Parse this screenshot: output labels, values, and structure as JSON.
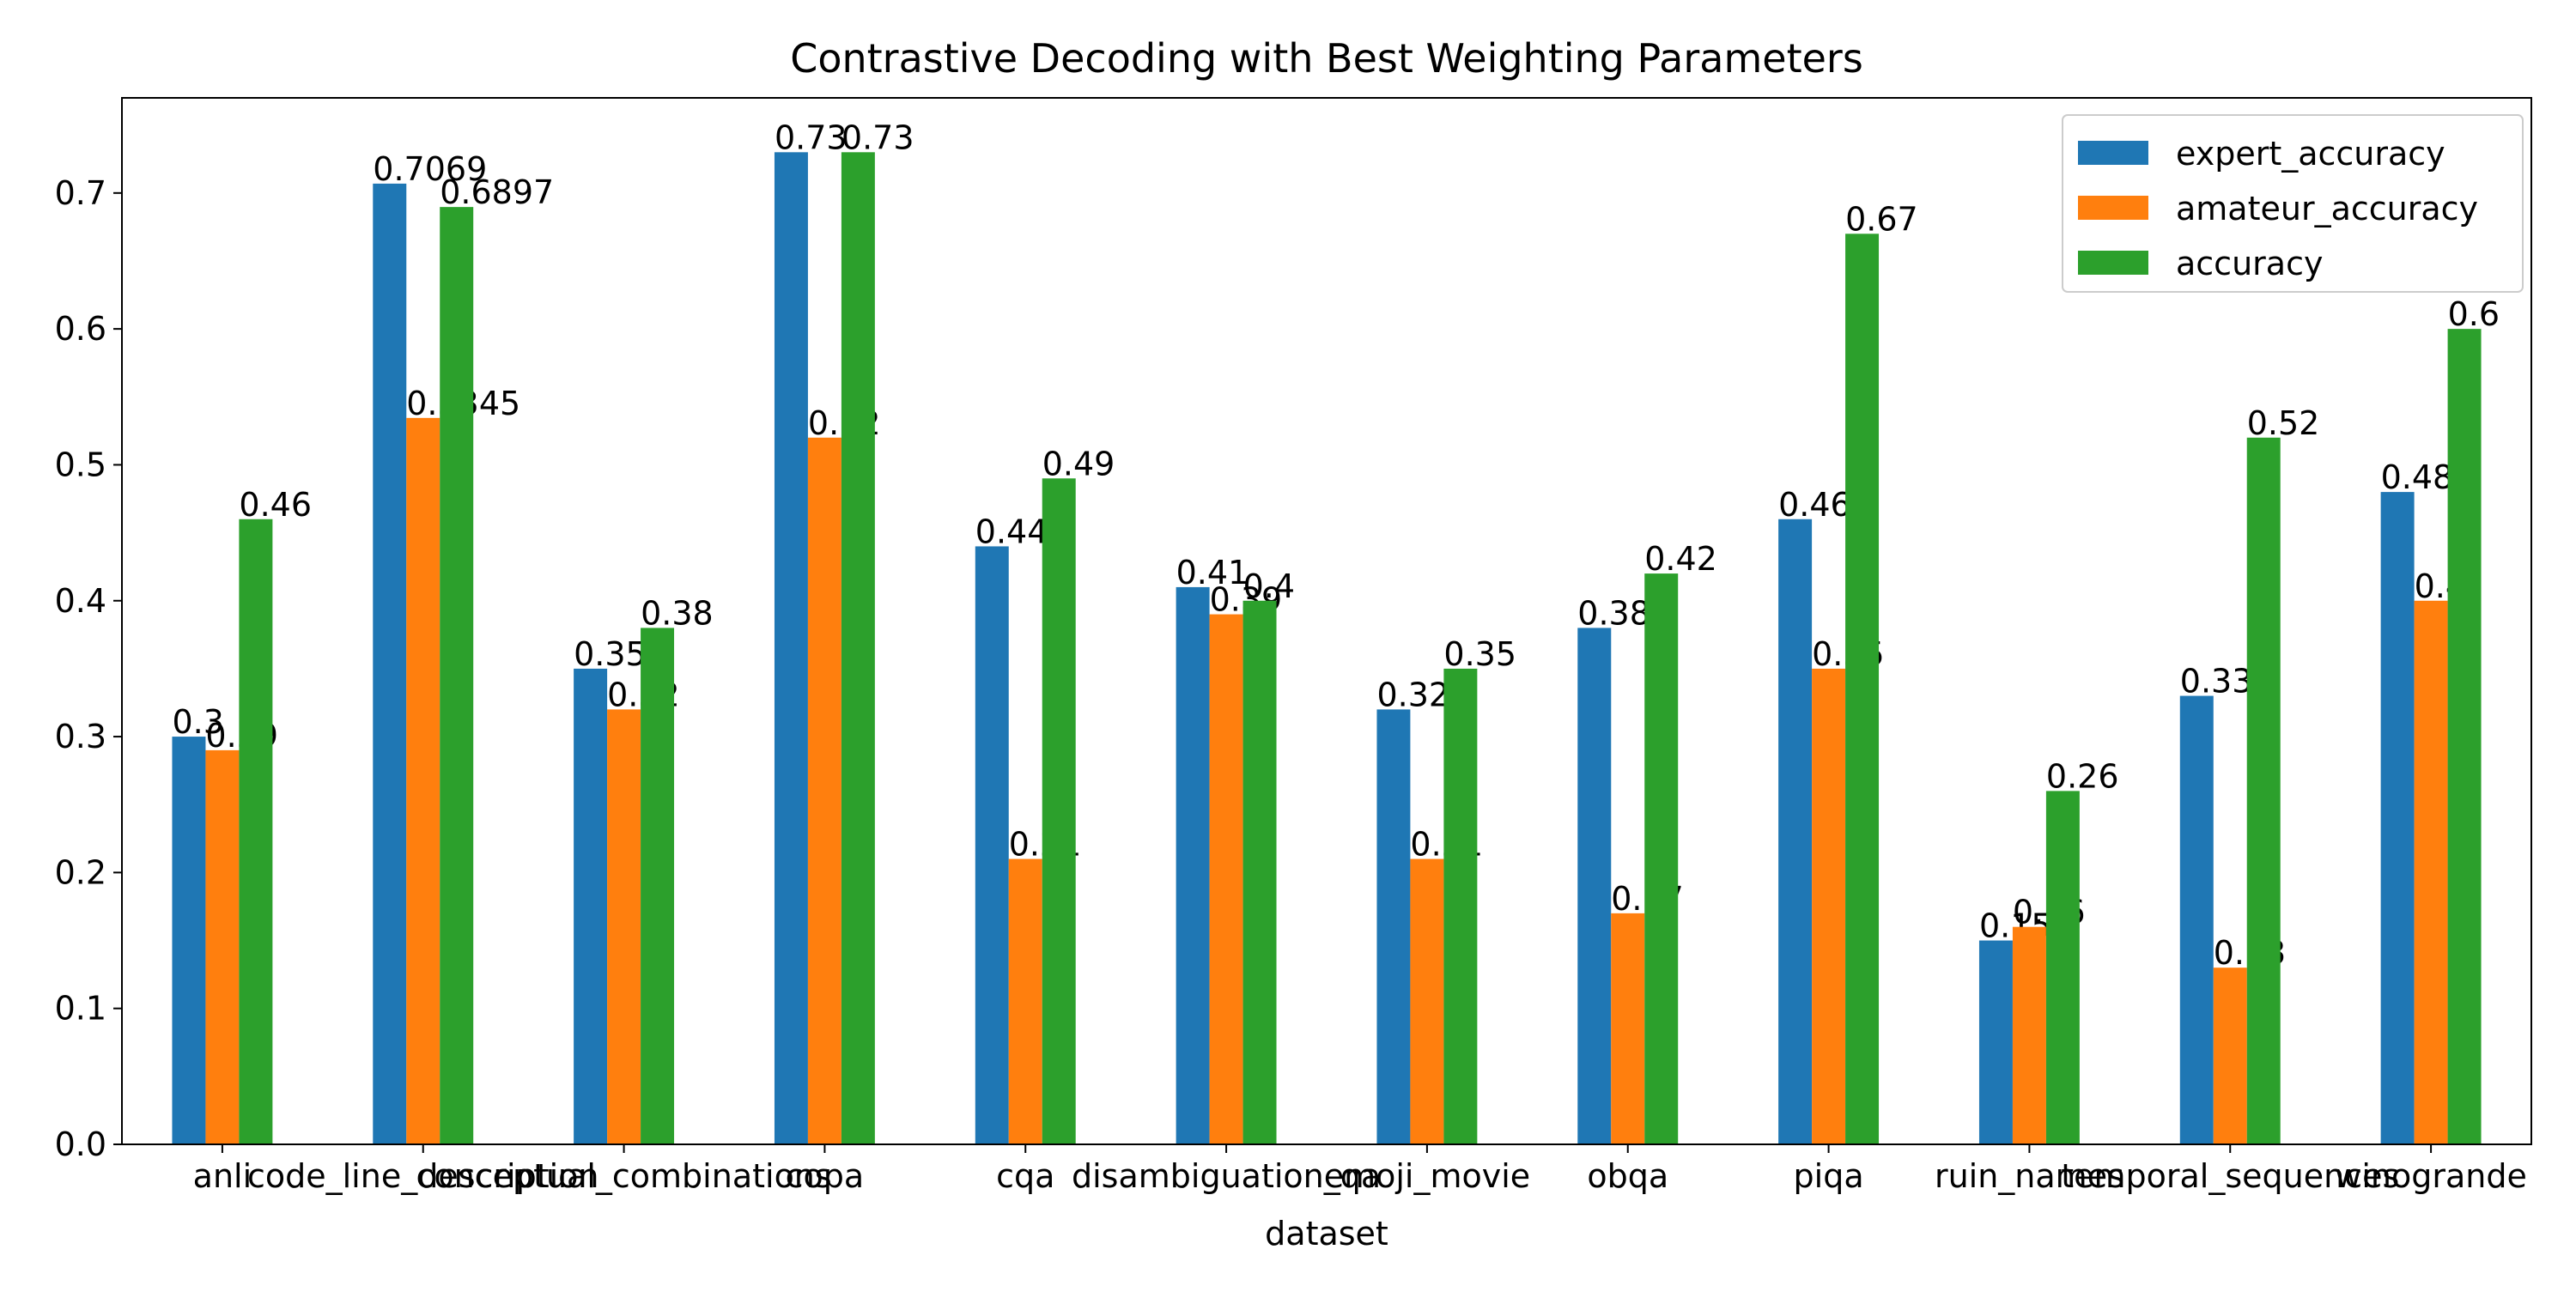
{
  "chart_data": {
    "type": "bar",
    "title": "Contrastive Decoding with Best Weighting Parameters",
    "xlabel": "dataset",
    "ylabel": "",
    "ylim": [
      0,
      0.77
    ],
    "yticks": [
      0.0,
      0.1,
      0.2,
      0.3,
      0.4,
      0.5,
      0.6,
      0.7
    ],
    "ytick_labels": [
      "0.0",
      "0.1",
      "0.2",
      "0.3",
      "0.4",
      "0.5",
      "0.6",
      "0.7"
    ],
    "grid": false,
    "legend_position": "top-right",
    "categories": [
      "anli",
      "code_line_description",
      "conceptual_combinations",
      "copa",
      "cqa",
      "disambiguation_qa",
      "emoji_movie",
      "obqa",
      "piqa",
      "ruin_names",
      "temporal_sequences",
      "winogrande"
    ],
    "series": [
      {
        "name": "expert_accuracy",
        "color": "#1f77b4",
        "values": [
          0.3,
          0.7069,
          0.35,
          0.73,
          0.44,
          0.41,
          0.32,
          0.38,
          0.46,
          0.15,
          0.33,
          0.48
        ],
        "labels": [
          "0.3",
          "0.7069",
          "0.35",
          "0.73",
          "0.44",
          "0.41",
          "0.32",
          "0.38",
          "0.46",
          "0.15",
          "0.33",
          "0.48"
        ]
      },
      {
        "name": "amateur_accuracy",
        "color": "#ff7f0e",
        "values": [
          0.29,
          0.5345,
          0.32,
          0.52,
          0.21,
          0.39,
          0.21,
          0.17,
          0.35,
          0.16,
          0.13,
          0.4
        ],
        "labels": [
          "0.29",
          "0.5345",
          "0.32",
          "0.52",
          "0.21",
          "0.39",
          "0.21",
          "0.17",
          "0.35",
          "0.16",
          "0.13",
          "0.4"
        ]
      },
      {
        "name": "accuracy",
        "color": "#2ca02c",
        "values": [
          0.46,
          0.6897,
          0.38,
          0.73,
          0.49,
          0.4,
          0.35,
          0.42,
          0.67,
          0.26,
          0.52,
          0.6
        ],
        "labels": [
          "0.46",
          "0.6897",
          "0.38",
          "0.73",
          "0.49",
          "0.4",
          "0.35",
          "0.42",
          "0.67",
          "0.26",
          "0.52",
          "0.6"
        ]
      }
    ]
  }
}
